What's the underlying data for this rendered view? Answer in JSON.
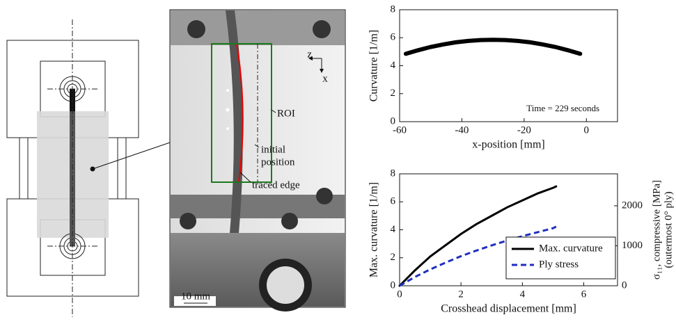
{
  "chart_data": [
    {
      "type": "line",
      "xlabel": "x-position [mm]",
      "ylabel": "Curvature [1/m]",
      "annotation": "Time = 229 seconds",
      "x": [
        -58,
        -54,
        -50,
        -46,
        -42,
        -38,
        -34,
        -30,
        -26,
        -22,
        -18,
        -14,
        -10,
        -6,
        -2
      ],
      "series": [
        {
          "color": "#000000",
          "values": [
            4.85,
            5.11,
            5.34,
            5.52,
            5.67,
            5.77,
            5.83,
            5.85,
            5.83,
            5.77,
            5.67,
            5.52,
            5.34,
            5.11,
            4.85
          ]
        }
      ],
      "xlim": [
        -60,
        10
      ],
      "xticks": [
        -60,
        -40,
        -20,
        0
      ],
      "ylim": [
        0,
        8
      ],
      "yticks": [
        0,
        2,
        4,
        6,
        8
      ]
    },
    {
      "type": "line",
      "xlabel": "Crosshead displacement [mm]",
      "ylabel": "Max. curvature [1/m]",
      "y2label": [
        "σ₁₁, compressive [MPa]",
        "(outermost 0° ply)"
      ],
      "x": [
        0,
        0.5,
        1,
        1.5,
        2,
        2.5,
        3,
        3.5,
        4,
        4.5,
        5,
        5.1
      ],
      "series": [
        {
          "name": "Max. curvature",
          "color": "#000000",
          "values": [
            0,
            1.1,
            2.1,
            2.9,
            3.7,
            4.4,
            5.0,
            5.6,
            6.1,
            6.6,
            7.0,
            7.1
          ]
        },
        {
          "name": "Ply stress",
          "color": "#1f2fbf",
          "axis": "y2",
          "dashed": true,
          "values": [
            0,
            220,
            410,
            580,
            740,
            880,
            1010,
            1130,
            1240,
            1340,
            1440,
            1480
          ]
        }
      ],
      "xlim": [
        0,
        7.1
      ],
      "xticks": [
        0,
        2,
        4,
        6
      ],
      "ylim": [
        0,
        8
      ],
      "yticks": [
        0,
        2,
        4,
        6,
        8
      ],
      "y2lim": [
        0,
        2800
      ],
      "y2ticks": [
        0,
        1000,
        2000
      ],
      "legend": "lower right"
    }
  ],
  "photo": {
    "axis_z": "z",
    "axis_x": "x",
    "roi": "ROI",
    "initial_position": [
      "initial",
      "position"
    ],
    "traced_edge": "traced edge",
    "scale_bar": "10 mm"
  }
}
